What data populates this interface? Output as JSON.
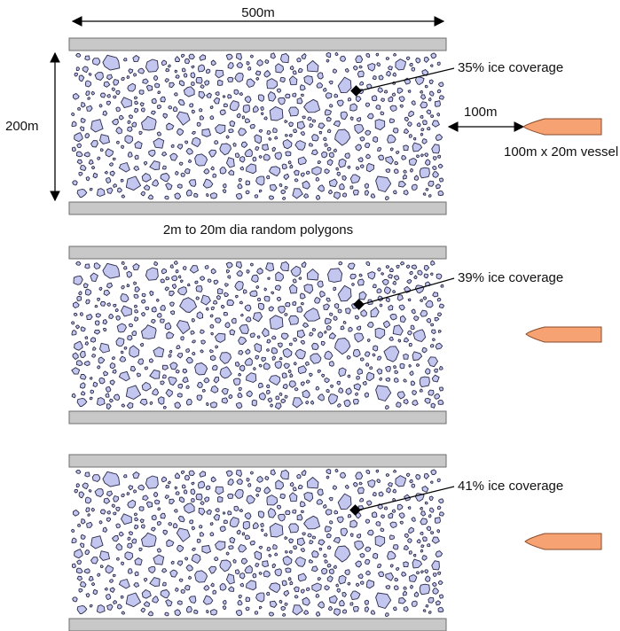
{
  "colors": {
    "ice_fill": "#c3c6ef",
    "ice_stroke": "#2a2a4a",
    "wall_fill": "#c8c8c8",
    "vessel_fill": "#f6a272",
    "text": "#111111"
  },
  "labels": {
    "width": "500m",
    "height": "200m",
    "gap": "100m",
    "vessel": "100m x 20m vessel",
    "polygons": "2m to 20m dia random polygons"
  },
  "panels": [
    {
      "coverage_label": "35% ice coverage",
      "coverage_percent": 35
    },
    {
      "coverage_label": "39% ice coverage",
      "coverage_percent": 39
    },
    {
      "coverage_label": "41% ice coverage",
      "coverage_percent": 41
    }
  ]
}
